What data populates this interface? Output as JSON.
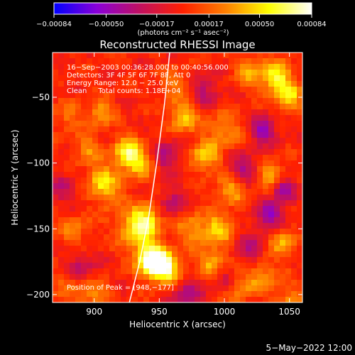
{
  "chart_data": {
    "type": "heatmap",
    "title": "Reconstructed RHESSI Image",
    "xlabel": "Heliocentric X (arcsec)",
    "ylabel": "Heliocentric Y (arcsec)",
    "xlim": [
      868,
      1060
    ],
    "ylim": [
      -206,
      -16
    ],
    "x_ticks": [
      900,
      950,
      1000,
      1050
    ],
    "y_ticks": [
      -50,
      -100,
      -150,
      -200
    ],
    "x_tick_labels": [
      "900",
      "950",
      "1000",
      "1050"
    ],
    "y_tick_labels": [
      "−50",
      "−100",
      "−150",
      "−200"
    ],
    "colorbar": {
      "label": "(photons cm⁻² s⁻¹ asec⁻²)",
      "range": [
        -0.00084,
        0.00084
      ],
      "ticks": [
        -0.00084,
        -0.0005,
        -0.00017,
        0.00017,
        0.0005,
        0.00084
      ],
      "tick_labels": [
        "−0.00084",
        "−0.00050",
        "−0.00017",
        "0.00017",
        "0.00050",
        "0.00084"
      ],
      "colors": [
        "#0000ff",
        "#8a00d8",
        "#c01060",
        "#ff2000",
        "#ff8000",
        "#ffff00",
        "#ffffff"
      ]
    },
    "annotations": [
      "16−Sep−2003 00:36:28.000 to 00:40:56.000",
      "Detectors: 3F 4F 5F 6F 7F 8F, Att 0",
      "Energy Range: 12.0 − 25.0 keV",
      "Clean     Total counts: 1.18E+04"
    ],
    "peak_label": "Position of Peak = [948,−177]",
    "peak": [
      948,
      -177
    ],
    "limb_curve": [
      [
        927,
        -206
      ],
      [
        935,
        -175
      ],
      [
        942,
        -140
      ],
      [
        948,
        -100
      ],
      [
        954,
        -55
      ],
      [
        958,
        -16
      ]
    ],
    "hotspots": [
      {
        "x": 948,
        "y": -177,
        "v": 0.00084,
        "s": 7
      },
      {
        "x": 943,
        "y": -170,
        "v": 0.00062,
        "s": 9
      },
      {
        "x": 958,
        "y": -183,
        "v": 0.00045,
        "s": 8
      },
      {
        "x": 940,
        "y": -143,
        "v": 0.00055,
        "s": 8
      },
      {
        "x": 930,
        "y": -150,
        "v": 0.00042,
        "s": 9
      },
      {
        "x": 925,
        "y": -92,
        "v": 0.00055,
        "s": 8
      },
      {
        "x": 935,
        "y": -100,
        "v": 0.0004,
        "s": 9
      },
      {
        "x": 905,
        "y": -112,
        "v": 0.00052,
        "s": 7
      },
      {
        "x": 912,
        "y": -125,
        "v": 0.0003,
        "s": 8
      },
      {
        "x": 895,
        "y": -90,
        "v": 0.00032,
        "s": 7
      },
      {
        "x": 905,
        "y": -62,
        "v": 0.00038,
        "s": 7
      },
      {
        "x": 880,
        "y": -65,
        "v": 0.00022,
        "s": 8
      },
      {
        "x": 885,
        "y": -150,
        "v": 0.00025,
        "s": 9
      },
      {
        "x": 882,
        "y": -192,
        "v": 0.0002,
        "s": 10
      },
      {
        "x": 968,
        "y": -65,
        "v": 0.00045,
        "s": 8
      },
      {
        "x": 985,
        "y": -95,
        "v": 0.00048,
        "s": 8
      },
      {
        "x": 1000,
        "y": -75,
        "v": 0.00032,
        "s": 9
      },
      {
        "x": 1005,
        "y": -120,
        "v": 0.0004,
        "s": 8
      },
      {
        "x": 995,
        "y": -150,
        "v": 0.00045,
        "s": 8
      },
      {
        "x": 975,
        "y": -150,
        "v": 0.00032,
        "s": 9
      },
      {
        "x": 990,
        "y": -175,
        "v": 0.00038,
        "s": 8
      },
      {
        "x": 1010,
        "y": -195,
        "v": 0.0003,
        "s": 9
      },
      {
        "x": 1040,
        "y": -35,
        "v": 0.0006,
        "s": 8
      },
      {
        "x": 1050,
        "y": -50,
        "v": 0.00052,
        "s": 7
      },
      {
        "x": 1020,
        "y": -30,
        "v": 0.00035,
        "s": 8
      },
      {
        "x": 1035,
        "y": -110,
        "v": 0.0004,
        "s": 8
      },
      {
        "x": 1045,
        "y": -160,
        "v": 0.00042,
        "s": 7
      },
      {
        "x": 1030,
        "y": -185,
        "v": 0.00028,
        "s": 9
      },
      {
        "x": 962,
        "y": -40,
        "v": 0.00025,
        "s": 8
      },
      {
        "x": 900,
        "y": -200,
        "v": 0.0003,
        "s": 8
      },
      {
        "x": 1050,
        "y": -205,
        "v": 0.0003,
        "s": 8
      }
    ],
    "coldspots": [
      {
        "x": 955,
        "y": -95,
        "v": -0.00035,
        "s": 9
      },
      {
        "x": 960,
        "y": -130,
        "v": -0.0003,
        "s": 8
      },
      {
        "x": 890,
        "y": -180,
        "v": -0.0003,
        "s": 9
      },
      {
        "x": 1015,
        "y": -105,
        "v": -0.0004,
        "s": 8
      },
      {
        "x": 1030,
        "y": -75,
        "v": -0.0005,
        "s": 7
      },
      {
        "x": 1035,
        "y": -140,
        "v": -0.00045,
        "s": 8
      },
      {
        "x": 1045,
        "y": -120,
        "v": -0.00055,
        "s": 6
      },
      {
        "x": 970,
        "y": -200,
        "v": -0.0004,
        "s": 8
      },
      {
        "x": 1020,
        "y": -165,
        "v": -0.0003,
        "s": 8
      },
      {
        "x": 875,
        "y": -120,
        "v": -0.00025,
        "s": 8
      },
      {
        "x": 985,
        "y": -45,
        "v": -0.0003,
        "s": 8
      },
      {
        "x": 1000,
        "y": -190,
        "v": -0.0003,
        "s": 7
      }
    ]
  },
  "footer": {
    "date": "5−May−2022 12:00"
  }
}
